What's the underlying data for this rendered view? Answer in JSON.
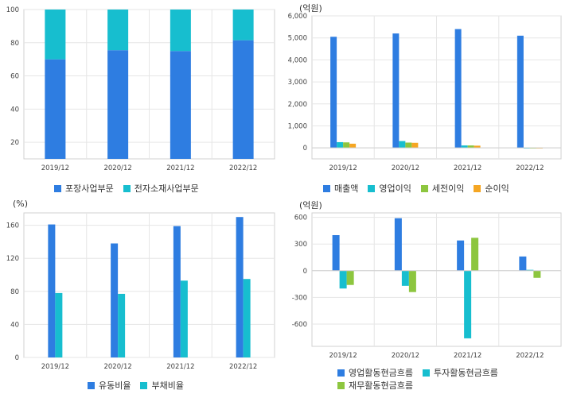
{
  "colors": {
    "blue": "#2E7DE1",
    "teal": "#17BECF",
    "green": "#8DC63F",
    "orange": "#F5A623"
  },
  "charts": {
    "c1": {
      "unit": ""
    },
    "c2": {
      "unit": "(억원)"
    },
    "c3": {
      "unit": "(%)"
    },
    "c4": {
      "unit": "(억원)"
    }
  },
  "chart_data": [
    {
      "id": "c1",
      "type": "bar",
      "stacked": true,
      "categories": [
        "2019/12",
        "2020/12",
        "2021/12",
        "2022/12"
      ],
      "series": [
        {
          "name": "포장사업부문",
          "color": "#2E7DE1",
          "values": [
            70,
            75.5,
            75,
            81.5
          ]
        },
        {
          "name": "전자소재사업부문",
          "color": "#17BECF",
          "values": [
            30,
            24.5,
            25,
            18.5
          ]
        }
      ],
      "ylim": [
        10,
        100
      ],
      "yticks": [
        20,
        40,
        60,
        80,
        100
      ],
      "grid": true,
      "legend": "bottom"
    },
    {
      "id": "c2",
      "type": "bar",
      "categories": [
        "2019/12",
        "2020/12",
        "2021/12",
        "2022/12"
      ],
      "series": [
        {
          "name": "매출액",
          "color": "#2E7DE1",
          "values": [
            5050,
            5200,
            5400,
            5100
          ]
        },
        {
          "name": "영업이익",
          "color": "#17BECF",
          "values": [
            260,
            310,
            110,
            -30
          ]
        },
        {
          "name": "세전이익",
          "color": "#8DC63F",
          "values": [
            250,
            240,
            110,
            -30
          ]
        },
        {
          "name": "순이익",
          "color": "#F5A623",
          "values": [
            190,
            230,
            100,
            -20
          ]
        }
      ],
      "ylim": [
        -500,
        6000
      ],
      "yticks": [
        0,
        1000,
        2000,
        3000,
        4000,
        5000,
        6000
      ],
      "ytick_labels": [
        "0",
        "1,000",
        "2,000",
        "3,000",
        "4,000",
        "5,000",
        "6,000"
      ],
      "grid": true,
      "legend": "bottom"
    },
    {
      "id": "c3",
      "type": "bar",
      "categories": [
        "2019/12",
        "2020/12",
        "2021/12",
        "2022/12"
      ],
      "series": [
        {
          "name": "유동비율",
          "color": "#2E7DE1",
          "values": [
            161,
            138,
            159,
            170
          ]
        },
        {
          "name": "부채비율",
          "color": "#17BECF",
          "values": [
            78,
            77,
            93,
            95
          ]
        }
      ],
      "ylim": [
        0,
        175
      ],
      "yticks": [
        0,
        40,
        80,
        120,
        160
      ],
      "grid": true,
      "legend": "bottom"
    },
    {
      "id": "c4",
      "type": "bar",
      "categories": [
        "2019/12",
        "2020/12",
        "2021/12",
        "2022/12"
      ],
      "series": [
        {
          "name": "영업활동현금흐름",
          "color": "#2E7DE1",
          "values": [
            400,
            590,
            340,
            160
          ]
        },
        {
          "name": "투자활동현금흐름",
          "color": "#17BECF",
          "values": [
            -200,
            -170,
            -760,
            10
          ]
        },
        {
          "name": "재무활동현금흐름",
          "color": "#8DC63F",
          "values": [
            -160,
            -240,
            370,
            -80
          ]
        }
      ],
      "ylim": [
        -850,
        650
      ],
      "yticks": [
        -600,
        -300,
        0,
        300,
        600
      ],
      "ytick_labels": [
        "-600",
        "-300",
        "0",
        "300",
        "600"
      ],
      "grid": true,
      "legend": "bottom"
    }
  ]
}
